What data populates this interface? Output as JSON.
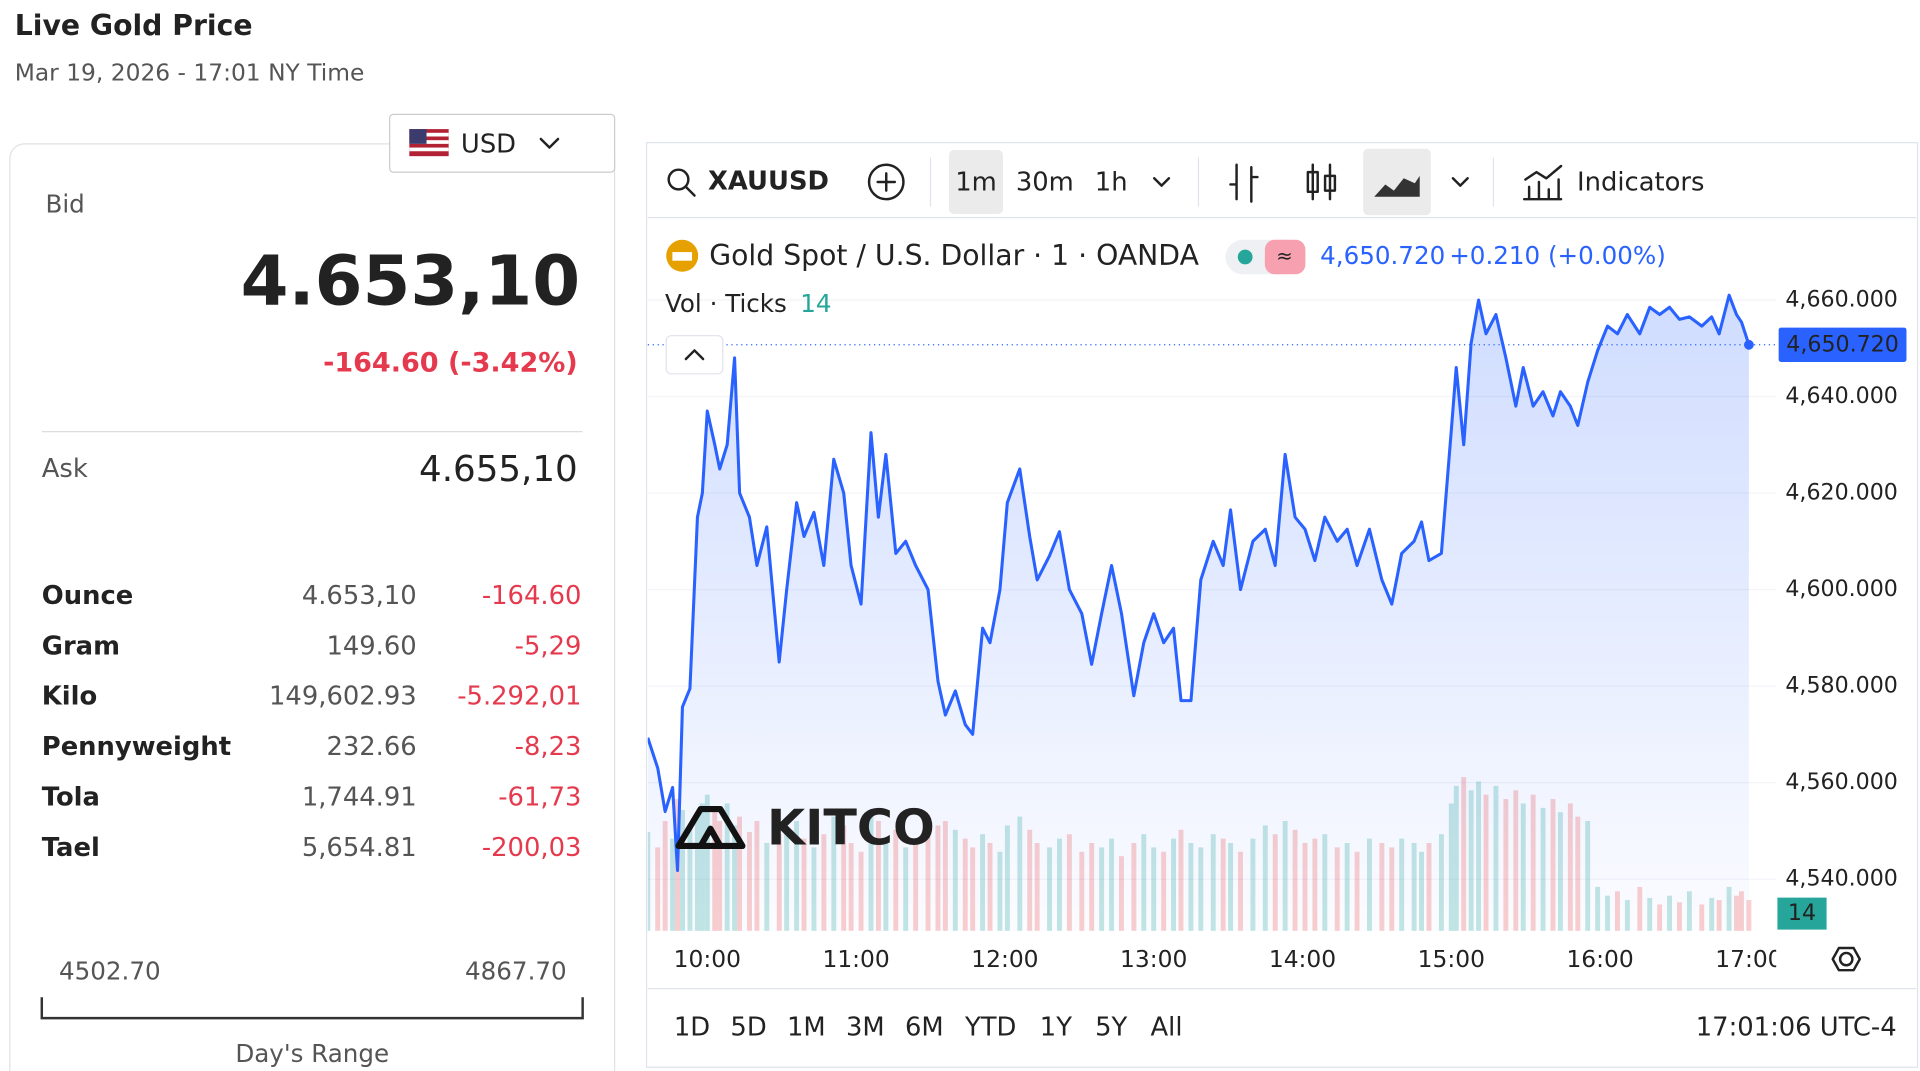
{
  "header": {
    "title": "Live Gold Price",
    "subtitle": "Mar 19, 2026 - 17:01 NY Time"
  },
  "currency": "USD",
  "quote": {
    "bid_label": "Bid",
    "bid": "4.653,10",
    "change": "-164.60 (-3.42%)",
    "ask_label": "Ask",
    "ask": "4.655,10"
  },
  "table": {
    "rows": [
      [
        "Ounce",
        "4.653,10",
        "-164.60"
      ],
      [
        "Gram",
        "149.60",
        "-5,29"
      ],
      [
        "Kilo",
        "149,602.93",
        "-5.292,01"
      ],
      [
        "Pennyweight",
        "232.66",
        "-8,23"
      ],
      [
        "Tola",
        "1,744.91",
        "-61,73"
      ],
      [
        "Tael",
        "5,654.81",
        "-200,03"
      ]
    ]
  },
  "range": {
    "low": "4502.70",
    "high": "4867.70",
    "label": "Day's Range"
  },
  "toolbar": {
    "symbol": "XAUUSD",
    "intervals": [
      "1m",
      "30m",
      "1h"
    ],
    "indicators": "Indicators"
  },
  "legend": {
    "title": "Gold Spot / U.S. Dollar · 1 · OANDA",
    "change": "+0.210 (+0.00%)"
  },
  "logo": "KITCO",
  "periods": [
    "1D",
    "5D",
    "1M",
    "3M",
    "6M",
    "YTD",
    "1Y",
    "5Y",
    "All"
  ],
  "clock": "17:01:06 UTC-4",
  "chart_data": {
    "type": "line",
    "color": "#2962ff",
    "grid": true,
    "x": [
      "09:36",
      "09:40",
      "09:43",
      "09:46",
      "09:48",
      "09:50",
      "09:53",
      "09:56",
      "09:58",
      "10:00",
      "10:03",
      "10:05",
      "10:08",
      "10:11",
      "10:13",
      "10:17",
      "10:20",
      "10:24",
      "10:29",
      "10:32",
      "10:36",
      "10:39",
      "10:43",
      "10:47",
      "10:51",
      "10:55",
      "10:58",
      "11:02",
      "11:06",
      "11:09",
      "11:12",
      "11:16",
      "11:20",
      "11:24",
      "11:29",
      "11:33",
      "11:36",
      "11:40",
      "11:44",
      "11:47",
      "11:51",
      "11:54",
      "11:58",
      "12:01",
      "12:06",
      "12:10",
      "12:13",
      "12:18",
      "12:22",
      "12:26",
      "12:31",
      "12:35",
      "12:39",
      "12:43",
      "12:47",
      "12:52",
      "12:56",
      "13:00",
      "13:04",
      "13:08",
      "13:11",
      "13:15",
      "13:19",
      "13:24",
      "13:28",
      "13:31",
      "13:35",
      "13:40",
      "13:45",
      "13:49",
      "13:53",
      "13:57",
      "14:01",
      "14:05",
      "14:09",
      "14:14",
      "14:18",
      "14:22",
      "14:27",
      "14:32",
      "14:36",
      "14:40",
      "14:45",
      "14:48",
      "14:51",
      "14:56",
      "15:00",
      "15:02",
      "15:05",
      "15:08",
      "15:11",
      "15:14",
      "15:18",
      "15:22",
      "15:26",
      "15:29",
      "15:33",
      "15:37",
      "15:41",
      "15:44",
      "15:48",
      "15:51",
      "15:55",
      "15:59",
      "16:03",
      "16:07",
      "16:11",
      "16:16",
      "16:20",
      "16:24",
      "16:28",
      "16:32",
      "16:36",
      "16:41",
      "16:45",
      "16:48",
      "16:52",
      "16:55",
      "16:57",
      "17:00"
    ],
    "series": [
      {
        "name": "XAUUSD",
        "color": "#2962ff",
        "values": [
          4569.3,
          4563,
          4554,
          4559,
          4541.8,
          4575.7,
          4579.5,
          4615,
          4620,
          4637,
          4630,
          4625,
          4630,
          4648,
          4620,
          4615,
          4605,
          4613,
          4585,
          4600,
          4618,
          4611,
          4616,
          4605,
          4627,
          4620,
          4605,
          4597,
          4632.5,
          4615,
          4628,
          4607.5,
          4610,
          4605,
          4600,
          4581,
          4574,
          4579,
          4572,
          4570,
          4592,
          4589,
          4600,
          4618,
          4625,
          4611,
          4602,
          4607,
          4612,
          4600,
          4595,
          4584.5,
          4595,
          4605,
          4595,
          4578,
          4589,
          4595,
          4589,
          4592,
          4577,
          4577,
          4602,
          4610,
          4605,
          4616.5,
          4600,
          4610,
          4612.5,
          4605,
          4628,
          4615,
          4612.5,
          4606,
          4615,
          4610,
          4612.5,
          4605,
          4612.5,
          4602,
          4597,
          4607.5,
          4610,
          4614,
          4606,
          4607.5,
          4633,
          4646,
          4630,
          4651,
          4660,
          4653,
          4657,
          4648,
          4638,
          4646,
          4638,
          4641,
          4636,
          4641,
          4638,
          4634,
          4643,
          4649.5,
          4654.6,
          4653,
          4657,
          4653,
          4658.5,
          4657,
          4658.5,
          4656,
          4656.5,
          4654.6,
          4656.5,
          4653,
          4661,
          4657,
          4655.4,
          4650.72
        ]
      }
    ],
    "volume": {
      "name": "Vol · Ticks",
      "up_color": "rgba(38,166,154,0.28)",
      "down_color": "rgba(239,83,80,0.28)",
      "values": [
        45,
        38,
        50,
        42,
        60,
        55,
        48,
        52,
        58,
        62,
        55,
        50,
        58,
        48,
        52,
        45,
        50,
        40,
        44,
        46,
        50,
        42,
        38,
        44,
        52,
        48,
        40,
        36,
        55,
        50,
        42,
        46,
        38,
        40,
        44,
        48,
        50,
        46,
        42,
        38,
        44,
        40,
        36,
        48,
        52,
        46,
        40,
        38,
        42,
        44,
        36,
        40,
        38,
        42,
        34,
        40,
        44,
        38,
        36,
        42,
        46,
        40,
        38,
        44,
        42,
        40,
        36,
        42,
        48,
        44,
        50,
        46,
        40,
        42,
        44,
        38,
        40,
        36,
        42,
        40,
        38,
        42,
        40,
        36,
        40,
        44,
        58,
        66,
        70,
        64,
        68,
        62,
        66,
        60,
        64,
        58,
        62,
        56,
        60,
        54,
        58,
        52,
        50,
        20,
        16,
        18,
        14,
        20,
        15,
        12,
        16,
        13,
        18,
        12,
        15,
        14,
        20,
        16,
        18,
        14
      ]
    },
    "price_line": {
      "value": 4650.72,
      "label": "4,650.720"
    },
    "xlim": [
      "09:36",
      "17:11"
    ],
    "xticks": [
      "10:00",
      "11:00",
      "12:00",
      "13:00",
      "14:00",
      "15:00",
      "16:00",
      "17:00"
    ],
    "ylim": [
      4529.3,
      4676.3
    ],
    "yticks": [
      {
        "value": 4540,
        "label": "4,540.000"
      },
      {
        "value": 4560,
        "label": "4,560.000"
      },
      {
        "value": 4580,
        "label": "4,580.000"
      },
      {
        "value": 4600,
        "label": "4,600.000"
      },
      {
        "value": 4620,
        "label": "4,620.000"
      },
      {
        "value": 4640,
        "label": "4,640.000"
      },
      {
        "value": 4660,
        "label": "4,660.000"
      }
    ]
  }
}
